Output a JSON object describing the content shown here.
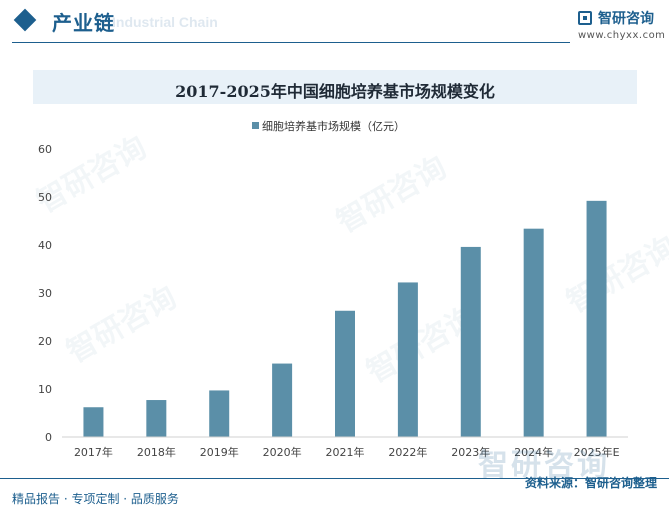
{
  "header": {
    "title": "产业链",
    "subtitle": "Industrial Chain"
  },
  "logo": {
    "name": "智研咨询",
    "url": "www.chyxx.com"
  },
  "watermark_text": "智研咨询",
  "chart_data": {
    "type": "bar",
    "title": "2017-2025年中国细胞培养基市场规模变化",
    "categories": [
      "2017年",
      "2018年",
      "2019年",
      "2020年",
      "2021年",
      "2022年",
      "2023年",
      "2024年",
      "2025年E"
    ],
    "series": [
      {
        "name": "细胞培养基市场规模（亿元）",
        "values": [
          6.2,
          7.7,
          9.7,
          15.3,
          26.3,
          32.2,
          39.6,
          43.4,
          49.2
        ],
        "color": "#5b8fa8"
      }
    ],
    "ylim": [
      0,
      60
    ],
    "yticks": [
      0,
      10,
      20,
      30,
      40,
      50,
      60
    ],
    "legend_position": "top-center",
    "grid": false
  },
  "footer": {
    "left": "精品报告 · 专项定制 · 品质服务",
    "right": "资料来源：智研咨询整理",
    "brand": "智研咨询"
  }
}
